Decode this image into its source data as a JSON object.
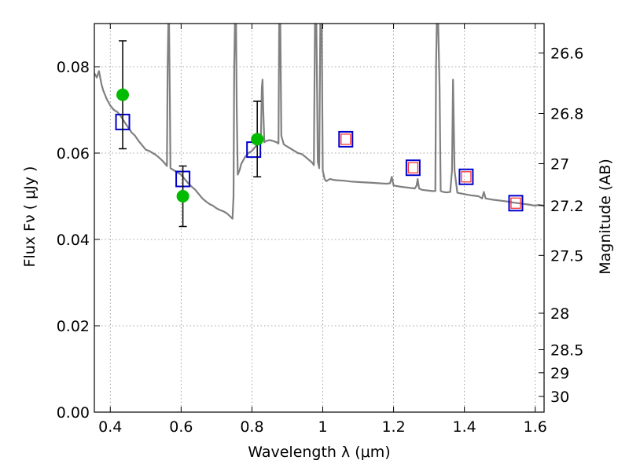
{
  "chart_data": {
    "type": "line",
    "title": "",
    "xlabel": "Wavelength  λ (μm)",
    "ylabel": "Flux  Fν  ( μJy )",
    "y2label": "Magnitude (AB)",
    "xlim": [
      0.355,
      1.625
    ],
    "ylim": [
      0.0,
      0.09
    ],
    "grid": true,
    "colors": {
      "spectrum": "#808080",
      "observed": "#00bb00",
      "model_box": "#0000cc",
      "model_box_inner": "#ff3333",
      "errorbar": "#000000"
    },
    "x_ticks": [
      {
        "value": 0.4,
        "label": "0.4"
      },
      {
        "value": 0.6,
        "label": "0.6"
      },
      {
        "value": 0.8,
        "label": "0.8"
      },
      {
        "value": 1.0,
        "label": "1"
      },
      {
        "value": 1.2,
        "label": "1.2"
      },
      {
        "value": 1.4,
        "label": "1.4"
      },
      {
        "value": 1.6,
        "label": "1.6"
      }
    ],
    "y_ticks": [
      {
        "value": 0.0,
        "label": "0.00"
      },
      {
        "value": 0.02,
        "label": "0.02"
      },
      {
        "value": 0.04,
        "label": "0.04"
      },
      {
        "value": 0.06,
        "label": "0.06"
      },
      {
        "value": 0.08,
        "label": "0.08"
      }
    ],
    "mag_ticks": [
      {
        "mag": 26.6,
        "label": "26.6"
      },
      {
        "mag": 26.8,
        "label": "26.8"
      },
      {
        "mag": 27.0,
        "label": "27"
      },
      {
        "mag": 27.2,
        "label": "27.2"
      },
      {
        "mag": 27.5,
        "label": "27.5"
      },
      {
        "mag": 28.0,
        "label": "28"
      },
      {
        "mag": 28.5,
        "label": "28.5"
      },
      {
        "mag": 29.0,
        "label": "29"
      },
      {
        "mag": 30.0,
        "label": "30"
      }
    ],
    "spectrum": [
      [
        0.355,
        0.0785
      ],
      [
        0.362,
        0.0775
      ],
      [
        0.368,
        0.079
      ],
      [
        0.375,
        0.076
      ],
      [
        0.38,
        0.0745
      ],
      [
        0.39,
        0.0725
      ],
      [
        0.4,
        0.071
      ],
      [
        0.41,
        0.07
      ],
      [
        0.42,
        0.0695
      ],
      [
        0.43,
        0.0685
      ],
      [
        0.44,
        0.0672
      ],
      [
        0.45,
        0.066
      ],
      [
        0.46,
        0.0648
      ],
      [
        0.47,
        0.064
      ],
      [
        0.48,
        0.0628
      ],
      [
        0.49,
        0.0618
      ],
      [
        0.5,
        0.0608
      ],
      [
        0.51,
        0.0605
      ],
      [
        0.52,
        0.06
      ],
      [
        0.53,
        0.0595
      ],
      [
        0.54,
        0.0588
      ],
      [
        0.55,
        0.058
      ],
      [
        0.555,
        0.0575
      ],
      [
        0.56,
        0.057
      ],
      [
        0.562,
        0.08
      ],
      [
        0.564,
        0.09
      ],
      [
        0.566,
        0.09
      ],
      [
        0.568,
        0.075
      ],
      [
        0.57,
        0.0565
      ],
      [
        0.58,
        0.056
      ],
      [
        0.59,
        0.0555
      ],
      [
        0.6,
        0.055
      ],
      [
        0.61,
        0.054
      ],
      [
        0.62,
        0.053
      ],
      [
        0.63,
        0.0522
      ],
      [
        0.64,
        0.0515
      ],
      [
        0.65,
        0.0505
      ],
      [
        0.66,
        0.0495
      ],
      [
        0.67,
        0.0488
      ],
      [
        0.68,
        0.0482
      ],
      [
        0.69,
        0.0478
      ],
      [
        0.7,
        0.0472
      ],
      [
        0.71,
        0.0468
      ],
      [
        0.72,
        0.0465
      ],
      [
        0.73,
        0.046
      ],
      [
        0.74,
        0.0452
      ],
      [
        0.745,
        0.0448
      ],
      [
        0.748,
        0.05
      ],
      [
        0.75,
        0.08
      ],
      [
        0.752,
        0.09
      ],
      [
        0.755,
        0.09
      ],
      [
        0.757,
        0.07
      ],
      [
        0.76,
        0.055
      ],
      [
        0.765,
        0.056
      ],
      [
        0.77,
        0.0575
      ],
      [
        0.78,
        0.059
      ],
      [
        0.79,
        0.06
      ],
      [
        0.8,
        0.0605
      ],
      [
        0.81,
        0.0615
      ],
      [
        0.82,
        0.0625
      ],
      [
        0.825,
        0.0622
      ],
      [
        0.828,
        0.075
      ],
      [
        0.83,
        0.077
      ],
      [
        0.832,
        0.07
      ],
      [
        0.835,
        0.0625
      ],
      [
        0.84,
        0.0628
      ],
      [
        0.85,
        0.063
      ],
      [
        0.86,
        0.0628
      ],
      [
        0.87,
        0.0625
      ],
      [
        0.875,
        0.0622
      ],
      [
        0.877,
        0.09
      ],
      [
        0.88,
        0.09
      ],
      [
        0.883,
        0.064
      ],
      [
        0.89,
        0.062
      ],
      [
        0.9,
        0.0615
      ],
      [
        0.91,
        0.061
      ],
      [
        0.92,
        0.0605
      ],
      [
        0.93,
        0.06
      ],
      [
        0.94,
        0.0598
      ],
      [
        0.95,
        0.0592
      ],
      [
        0.96,
        0.0585
      ],
      [
        0.97,
        0.0578
      ],
      [
        0.975,
        0.0572
      ],
      [
        0.978,
        0.09
      ],
      [
        0.982,
        0.09
      ],
      [
        0.986,
        0.058
      ],
      [
        0.99,
        0.0565
      ],
      [
        0.993,
        0.09
      ],
      [
        0.997,
        0.09
      ],
      [
        1.0,
        0.056
      ],
      [
        1.005,
        0.054
      ],
      [
        1.01,
        0.0535
      ],
      [
        1.02,
        0.054
      ],
      [
        1.03,
        0.0538
      ],
      [
        1.04,
        0.0537
      ],
      [
        1.06,
        0.0536
      ],
      [
        1.08,
        0.0534
      ],
      [
        1.1,
        0.0533
      ],
      [
        1.12,
        0.0532
      ],
      [
        1.14,
        0.0531
      ],
      [
        1.16,
        0.053
      ],
      [
        1.18,
        0.0529
      ],
      [
        1.19,
        0.053
      ],
      [
        1.195,
        0.0545
      ],
      [
        1.2,
        0.0525
      ],
      [
        1.22,
        0.0522
      ],
      [
        1.24,
        0.052
      ],
      [
        1.26,
        0.0518
      ],
      [
        1.265,
        0.0525
      ],
      [
        1.268,
        0.054
      ],
      [
        1.272,
        0.0518
      ],
      [
        1.28,
        0.0515
      ],
      [
        1.3,
        0.0513
      ],
      [
        1.31,
        0.0512
      ],
      [
        1.318,
        0.0512
      ],
      [
        1.32,
        0.08
      ],
      [
        1.322,
        0.09
      ],
      [
        1.326,
        0.09
      ],
      [
        1.33,
        0.075
      ],
      [
        1.333,
        0.0512
      ],
      [
        1.34,
        0.051
      ],
      [
        1.35,
        0.0509
      ],
      [
        1.36,
        0.051
      ],
      [
        1.365,
        0.056
      ],
      [
        1.368,
        0.077
      ],
      [
        1.372,
        0.056
      ],
      [
        1.38,
        0.0508
      ],
      [
        1.4,
        0.0505
      ],
      [
        1.42,
        0.0502
      ],
      [
        1.44,
        0.05
      ],
      [
        1.45,
        0.0495
      ],
      [
        1.455,
        0.051
      ],
      [
        1.46,
        0.0495
      ],
      [
        1.48,
        0.0492
      ],
      [
        1.5,
        0.049
      ],
      [
        1.52,
        0.0488
      ],
      [
        1.54,
        0.0485
      ],
      [
        1.56,
        0.0483
      ],
      [
        1.58,
        0.0481
      ],
      [
        1.6,
        0.0478
      ],
      [
        1.61,
        0.048
      ],
      [
        1.625,
        0.0478
      ]
    ],
    "observed": [
      {
        "x": 0.435,
        "y": 0.0735,
        "err_low": 0.061,
        "err_high": 0.086
      },
      {
        "x": 0.605,
        "y": 0.05,
        "err_low": 0.043,
        "err_high": 0.057
      },
      {
        "x": 0.815,
        "y": 0.0632,
        "err_low": 0.0545,
        "err_high": 0.072
      }
    ],
    "model_points": [
      {
        "x": 0.435,
        "y": 0.0672,
        "inner": false
      },
      {
        "x": 0.605,
        "y": 0.054,
        "inner": false
      },
      {
        "x": 0.805,
        "y": 0.0608,
        "inner": false
      },
      {
        "x": 1.065,
        "y": 0.0632,
        "inner": true
      },
      {
        "x": 1.255,
        "y": 0.0566,
        "inner": true
      },
      {
        "x": 1.405,
        "y": 0.0545,
        "inner": true
      },
      {
        "x": 1.545,
        "y": 0.0484,
        "inner": true
      }
    ]
  }
}
